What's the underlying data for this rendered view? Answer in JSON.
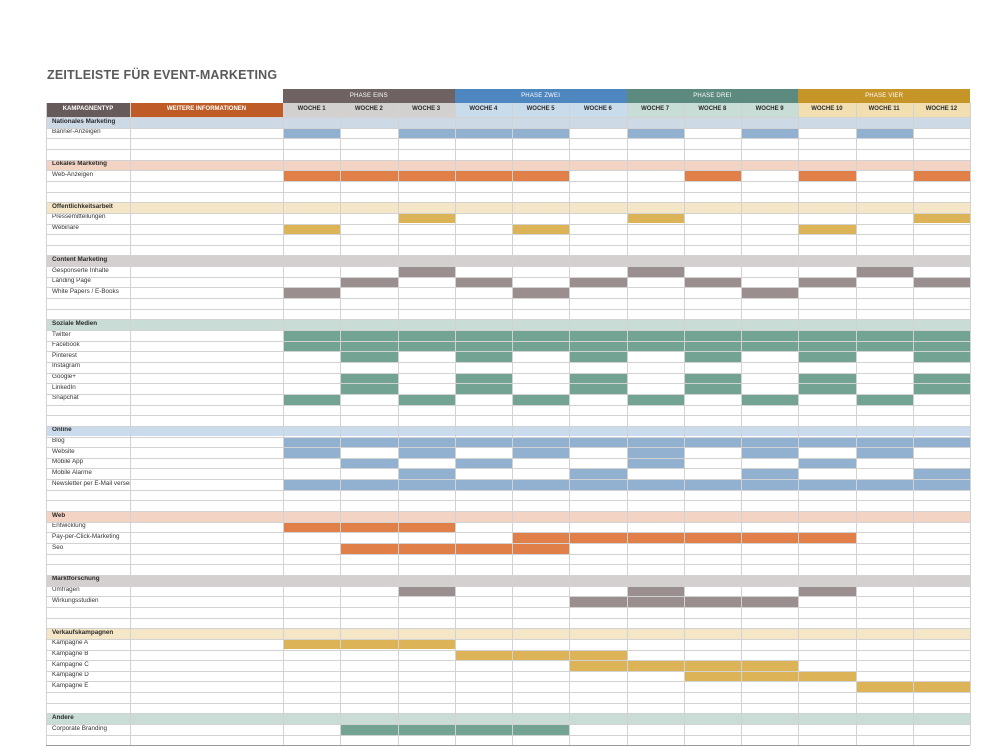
{
  "title": "ZEITLEISTE FÜR EVENT-MARKETING",
  "colors": {
    "phase_eins": "#6f6263",
    "phase_zwei": "#4e86bf",
    "phase_drei": "#5d8a7e",
    "phase_vier": "#c59528",
    "header_campaign_bg": "#675a5b",
    "header_info_bg": "#bf5b26",
    "grid_line": "#d2d2d2",
    "bar_blue": "#92b1d1",
    "bar_orange": "#e07f48",
    "bar_yellow": "#ddb358",
    "bar_gray": "#9b8e8e",
    "bar_green": "#72a393"
  },
  "header": {
    "campaign_label": "KAMPAGNENTYP",
    "info_label": "WEITERE INFORMATIONEN",
    "phases": [
      {
        "label": "PHASE EINS",
        "color": "#6f6263",
        "week_bg": "#d3d0d0"
      },
      {
        "label": "PHASE ZWEI",
        "color": "#4e86bf",
        "week_bg": "#c9dcec"
      },
      {
        "label": "PHASE DREI",
        "color": "#5d8a7e",
        "week_bg": "#c7ddd5"
      },
      {
        "label": "PHASE VIER",
        "color": "#c59528",
        "week_bg": "#f1dfb1"
      }
    ],
    "weeks": [
      "WOCHE 1",
      "WOCHE 2",
      "WOCHE 3",
      "WOCHE 4",
      "WOCHE 5",
      "WOCHE 6",
      "WOCHE 7",
      "WOCHE 8",
      "WOCHE 9",
      "WOCHE 10",
      "WOCHE 11",
      "WOCHE 12"
    ]
  },
  "sections": [
    {
      "name": "Nationales Marketing",
      "band": "#ced9e6",
      "color": "#92b1d1",
      "items": [
        {
          "label": "Banner-Anzeigen",
          "weeks": [
            1,
            3,
            4,
            5,
            7,
            9,
            11
          ]
        }
      ]
    },
    {
      "name": "Lokales Marketing",
      "band": "#f3d3c3",
      "color": "#e07f48",
      "items": [
        {
          "label": "Web-Anzeigen",
          "weeks": [
            1,
            2,
            3,
            4,
            5,
            8,
            10,
            12
          ]
        }
      ]
    },
    {
      "name": "Öffentlichkeitsarbeit",
      "band": "#f4e6c7",
      "color": "#ddb358",
      "items": [
        {
          "label": "Pressemitteilungen",
          "weeks": [
            3,
            7,
            12
          ]
        },
        {
          "label": "Webinare",
          "weeks": [
            1,
            5,
            10
          ]
        }
      ]
    },
    {
      "name": "Content Marketing",
      "band": "#d4d0d0",
      "color": "#9b8e8e",
      "items": [
        {
          "label": "Gesponserte Inhalte",
          "weeks": [
            3,
            7,
            11
          ]
        },
        {
          "label": "Landing Page",
          "weeks": [
            2,
            4,
            6,
            8,
            10,
            12
          ]
        },
        {
          "label": "White Papers / E-Books",
          "weeks": [
            1,
            5,
            9
          ]
        }
      ]
    },
    {
      "name": "Soziale Medien",
      "band": "#c9ddd6",
      "color": "#72a393",
      "items": [
        {
          "label": "Twitter",
          "weeks": [
            1,
            2,
            3,
            4,
            5,
            6,
            7,
            8,
            9,
            10,
            11,
            12
          ]
        },
        {
          "label": "Facebook",
          "weeks": [
            1,
            2,
            3,
            4,
            5,
            6,
            7,
            8,
            9,
            10,
            11,
            12
          ]
        },
        {
          "label": "Pinterest",
          "weeks": [
            2,
            4,
            6,
            8,
            10,
            12
          ]
        },
        {
          "label": "Instagram",
          "weeks": []
        },
        {
          "label": "Google+",
          "weeks": [
            2,
            4,
            6,
            8,
            10,
            12
          ]
        },
        {
          "label": "LinkedIn",
          "weeks": [
            2,
            4,
            6,
            8,
            10,
            12
          ]
        },
        {
          "label": "Snapchat",
          "weeks": [
            1,
            3,
            5,
            7,
            9,
            11
          ]
        }
      ]
    },
    {
      "name": "Online",
      "band": "#c9dbec",
      "color": "#92b1d1",
      "items": [
        {
          "label": "Blog",
          "weeks": [
            1,
            2,
            3,
            4,
            5,
            6,
            7,
            8,
            9,
            10,
            11,
            12
          ]
        },
        {
          "label": "Website",
          "weeks": [
            1,
            3,
            5,
            7,
            9,
            11
          ]
        },
        {
          "label": "Mobile App",
          "weeks": [
            2,
            4,
            7,
            10
          ]
        },
        {
          "label": "Mobile Alarme",
          "weeks": [
            3,
            6,
            9,
            12
          ]
        },
        {
          "label": "Newsletter per E-Mail versenden",
          "weeks": [
            1,
            2,
            3,
            4,
            5,
            6,
            7,
            8,
            9,
            10,
            11,
            12
          ]
        }
      ]
    },
    {
      "name": "Web",
      "band": "#f3d3c3",
      "color": "#e07f48",
      "items": [
        {
          "label": "Entwicklung",
          "weeks": [
            1,
            2,
            3
          ]
        },
        {
          "label": "Pay-per-Click-Marketing",
          "weeks": [
            5,
            6,
            7,
            8,
            9,
            10
          ]
        },
        {
          "label": "Seo",
          "weeks": [
            2,
            3,
            4,
            5
          ]
        }
      ]
    },
    {
      "name": "Marktforschung",
      "band": "#d4d0d0",
      "color": "#9b8e8e",
      "items": [
        {
          "label": "Umfragen",
          "weeks": [
            3,
            7,
            10
          ]
        },
        {
          "label": "Wirkungsstudien",
          "weeks": [
            6,
            7,
            8,
            9
          ]
        }
      ]
    },
    {
      "name": "Verkaufskampagnen",
      "band": "#f4e6c7",
      "color": "#ddb358",
      "items": [
        {
          "label": "Kampagne A",
          "weeks": [
            1,
            2,
            3
          ]
        },
        {
          "label": "Kampagne B",
          "weeks": [
            4,
            5,
            6
          ]
        },
        {
          "label": "Kampagne C",
          "weeks": [
            6,
            7,
            8,
            9
          ]
        },
        {
          "label": "Kampagne D",
          "weeks": [
            8,
            9,
            10
          ]
        },
        {
          "label": "Kampagne E",
          "weeks": [
            11,
            12
          ]
        }
      ]
    },
    {
      "name": "Andere",
      "band": "#c9ddd6",
      "color": "#72a393",
      "items": [
        {
          "label": "Corporate Branding",
          "weeks": [
            2,
            3,
            4,
            5
          ]
        }
      ]
    }
  ]
}
